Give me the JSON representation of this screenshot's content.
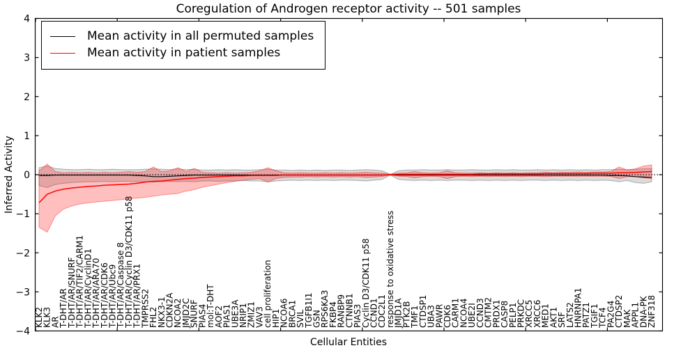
{
  "figure": {
    "background": "#ffffff"
  },
  "legend": {
    "entries": [
      {
        "label": "Mean activity in all permuted samples",
        "color": "#000000"
      },
      {
        "label": "Mean activity in patient samples",
        "color": "#ff0000"
      }
    ]
  },
  "chart_data": {
    "type": "line",
    "title": "Coregulation of Androgen receptor activity -- 501 samples",
    "xlabel": "Cellular Entities",
    "ylabel": "Inferred Activity",
    "ylim": [
      -4,
      4
    ],
    "yticks": [
      -4,
      -3,
      -2,
      -1,
      0,
      1,
      2,
      3,
      4
    ],
    "grid": false,
    "legend_position": "upper left",
    "zero_line": {
      "style": "dotted",
      "color": "#000000",
      "y": 0
    },
    "categories": [
      "KLK2",
      "KLK3",
      "AR",
      "T-DHT/AR",
      "T-DHT/AR/SNURF",
      "T-DHT/AR/TIF2/CARM1",
      "T-DHT/AR/CyclinD1",
      "T-DHT/AR/ARA70",
      "T-DHT/AR/CDK6",
      "T-DHT/AR/Ubc9",
      "T-DHT/AR/Caspase 8",
      "T-DHT/AR/Cyclin D3/CDK11 p58",
      "T-DHT/AR/PRX1",
      "TMPRSS2",
      "FHL2",
      "NKX3-1",
      "CDKN2A",
      "NCOA2",
      "JMJD2C",
      "SNURF",
      "PIAS4",
      "mol:T-DHT",
      "AOF2",
      "PIAS1",
      "UBE3A",
      "NRIP1",
      "ZMIZ1",
      "VAV3",
      "cell proliferation",
      "HIP1",
      "NCOA6",
      "BRCA1",
      "SVIL",
      "TGFB1I1",
      "GSN",
      "RPS6KA3",
      "FKBP4",
      "RANBP9",
      "CTNNB1",
      "PIAS3",
      "Cyclin D3/CDK11 p58",
      "CCND1",
      "CDC2L1",
      "response to oxidative stress",
      "JMJD1A",
      "PTK2B",
      "TMF1",
      "CTDSP1",
      "UBA3",
      "PAWR",
      "CDK6",
      "CARM1",
      "NCOA4",
      "UBE2I",
      "CCND3",
      "CMTM2",
      "PRDX1",
      "CASP8",
      "PELP1",
      "PRKDC",
      "XRCC5",
      "XRCC6",
      "MED1",
      "AKT1",
      "SRF",
      "LATS2",
      "HNRNPA1",
      "PATZ1",
      "TGIF1",
      "TCF4",
      "PA2G4",
      "CTDSP2",
      "MAK",
      "APPL1",
      "DNA-PK",
      "ZNF318"
    ],
    "series": [
      {
        "name": "Mean activity in all permuted samples",
        "color": "#000000",
        "band_fill": "rgba(0,0,0,0.14)",
        "band_edge": "rgba(0,0,0,0.28)",
        "line_width": 1.2,
        "values": [
          -0.02,
          -0.02,
          -0.01,
          -0.01,
          -0.01,
          -0.01,
          -0.01,
          -0.01,
          -0.01,
          -0.01,
          -0.01,
          -0.01,
          -0.02,
          -0.03,
          -0.05,
          -0.05,
          -0.04,
          -0.03,
          -0.02,
          -0.01,
          -0.01,
          -0.01,
          -0.01,
          -0.01,
          -0.01,
          -0.01,
          -0.01,
          -0.01,
          -0.01,
          -0.01,
          -0.01,
          -0.01,
          -0.01,
          -0.01,
          -0.01,
          -0.01,
          -0.01,
          -0.01,
          -0.01,
          -0.01,
          -0.01,
          -0.01,
          -0.01,
          0,
          -0.01,
          -0.01,
          -0.01,
          -0.01,
          -0.01,
          -0.01,
          -0.01,
          -0.01,
          -0.01,
          -0.01,
          -0.01,
          -0.01,
          -0.01,
          -0.01,
          -0.01,
          -0.01,
          -0.01,
          -0.01,
          -0.01,
          -0.01,
          -0.01,
          -0.01,
          -0.01,
          -0.01,
          -0.01,
          -0.01,
          -0.02,
          -0.02,
          -0.03,
          -0.05,
          -0.06,
          -0.07
        ],
        "upper": [
          0.18,
          0.22,
          0.16,
          0.14,
          0.13,
          0.13,
          0.14,
          0.13,
          0.13,
          0.14,
          0.13,
          0.13,
          0.13,
          0.14,
          0.15,
          0.14,
          0.13,
          0.15,
          0.13,
          0.14,
          0.12,
          0.12,
          0.13,
          0.12,
          0.13,
          0.12,
          0.12,
          0.13,
          0.14,
          0.12,
          0.12,
          0.11,
          0.12,
          0.11,
          0.12,
          0.11,
          0.12,
          0.12,
          0.11,
          0.12,
          0.13,
          0.12,
          0.1,
          0.01,
          0.1,
          0.12,
          0.12,
          0.13,
          0.12,
          0.12,
          0.13,
          0.12,
          0.12,
          0.13,
          0.12,
          0.12,
          0.13,
          0.12,
          0.13,
          0.12,
          0.12,
          0.13,
          0.12,
          0.13,
          0.12,
          0.13,
          0.12,
          0.13,
          0.12,
          0.13,
          0.13,
          0.14,
          0.13,
          0.14,
          0.15,
          0.16
        ],
        "lower": [
          -0.28,
          -0.33,
          -0.25,
          -0.22,
          -0.2,
          -0.19,
          -0.18,
          -0.18,
          -0.17,
          -0.18,
          -0.17,
          -0.17,
          -0.18,
          -0.18,
          -0.19,
          -0.18,
          -0.17,
          -0.18,
          -0.17,
          -0.18,
          -0.16,
          -0.16,
          -0.17,
          -0.16,
          -0.16,
          -0.15,
          -0.16,
          -0.16,
          -0.18,
          -0.16,
          -0.15,
          -0.14,
          -0.15,
          -0.14,
          -0.15,
          -0.14,
          -0.15,
          -0.14,
          -0.14,
          -0.15,
          -0.16,
          -0.14,
          -0.12,
          -0.01,
          -0.12,
          -0.14,
          -0.15,
          -0.14,
          -0.15,
          -0.14,
          -0.15,
          -0.14,
          -0.14,
          -0.15,
          -0.14,
          -0.15,
          -0.14,
          -0.15,
          -0.14,
          -0.15,
          -0.14,
          -0.14,
          -0.15,
          -0.14,
          -0.15,
          -0.14,
          -0.15,
          -0.14,
          -0.15,
          -0.14,
          -0.15,
          -0.18,
          -0.15,
          -0.2,
          -0.22,
          -0.18
        ]
      },
      {
        "name": "Mean activity in patient samples",
        "color": "#ff0000",
        "band_fill": "rgba(255,0,0,0.25)",
        "band_edge": "rgba(255,0,0,0.4)",
        "line_width": 1.5,
        "values": [
          -0.72,
          -0.5,
          -0.42,
          -0.37,
          -0.34,
          -0.32,
          -0.3,
          -0.29,
          -0.27,
          -0.26,
          -0.25,
          -0.24,
          -0.22,
          -0.19,
          -0.17,
          -0.16,
          -0.14,
          -0.12,
          -0.1,
          -0.09,
          -0.07,
          -0.06,
          -0.05,
          -0.04,
          -0.03,
          -0.03,
          -0.02,
          -0.02,
          -0.02,
          -0.02,
          -0.01,
          -0.01,
          -0.01,
          -0.01,
          -0.01,
          -0.01,
          -0.01,
          -0.01,
          -0.01,
          -0.01,
          -0.01,
          -0.01,
          -0.01,
          0,
          0.01,
          0.01,
          0.01,
          0.01,
          0.01,
          0.01,
          0.01,
          0.01,
          0.01,
          0.01,
          0.02,
          0.02,
          0.02,
          0.02,
          0.02,
          0.02,
          0.02,
          0.02,
          0.03,
          0.03,
          0.03,
          0.03,
          0.03,
          0.03,
          0.04,
          0.04,
          0.04,
          0.05,
          0.05,
          0.06,
          0.07,
          0.08
        ],
        "upper": [
          0.1,
          0.27,
          0.08,
          0.05,
          0.06,
          0.05,
          0.06,
          0.05,
          0.06,
          0.05,
          0.06,
          0.08,
          0.06,
          0.08,
          0.2,
          0.08,
          0.1,
          0.18,
          0.08,
          0.16,
          0.06,
          0.05,
          0.04,
          0.05,
          0.04,
          0.05,
          0.06,
          0.1,
          0.18,
          0.1,
          0.05,
          0.04,
          0.05,
          0.04,
          0.04,
          0.05,
          0.04,
          0.05,
          0.04,
          0.05,
          0.06,
          0.05,
          0.04,
          0.01,
          0.04,
          0.05,
          0.08,
          0.05,
          0.04,
          0.05,
          0.1,
          0.05,
          0.04,
          0.04,
          0.05,
          0.04,
          0.05,
          0.04,
          0.05,
          0.04,
          0.05,
          0.05,
          0.06,
          0.05,
          0.06,
          0.06,
          0.07,
          0.06,
          0.07,
          0.07,
          0.08,
          0.2,
          0.12,
          0.15,
          0.22,
          0.25
        ],
        "lower": [
          -1.35,
          -1.47,
          -1.05,
          -0.88,
          -0.8,
          -0.75,
          -0.72,
          -0.7,
          -0.68,
          -0.66,
          -0.64,
          -0.62,
          -0.6,
          -0.58,
          -0.55,
          -0.52,
          -0.5,
          -0.48,
          -0.42,
          -0.38,
          -0.32,
          -0.28,
          -0.24,
          -0.2,
          -0.17,
          -0.14,
          -0.12,
          -0.1,
          -0.19,
          -0.1,
          -0.07,
          -0.06,
          -0.06,
          -0.05,
          -0.06,
          -0.05,
          -0.06,
          -0.05,
          -0.06,
          -0.05,
          -0.07,
          -0.06,
          -0.05,
          -0.01,
          -0.04,
          -0.05,
          -0.08,
          -0.05,
          -0.04,
          -0.05,
          -0.1,
          -0.05,
          -0.04,
          -0.05,
          -0.04,
          -0.05,
          -0.04,
          -0.05,
          -0.04,
          -0.05,
          -0.04,
          -0.04,
          -0.05,
          -0.04,
          -0.04,
          -0.04,
          -0.04,
          -0.04,
          -0.04,
          -0.04,
          -0.04,
          -0.1,
          -0.05,
          -0.05,
          -0.08,
          -0.1
        ]
      }
    ]
  }
}
